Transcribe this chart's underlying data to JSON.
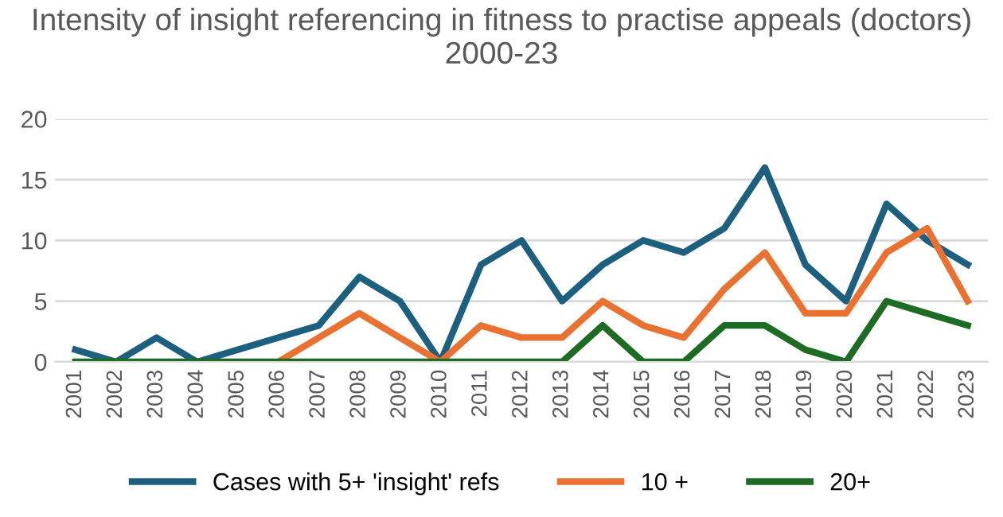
{
  "chart_data": {
    "type": "line",
    "title": "Intensity of insight referencing in fitness to practise appeals (doctors) 2000-23",
    "categories": [
      "2001",
      "2002",
      "2003",
      "2004",
      "2005",
      "2006",
      "2007",
      "2008",
      "2009",
      "2010",
      "2011",
      "2012",
      "2013",
      "2014",
      "2015",
      "2016",
      "2017",
      "2018",
      "2019",
      "2020",
      "2021",
      "2022",
      "2023"
    ],
    "series": [
      {
        "name": "Cases with 5+ 'insight' refs",
        "color": "#1d5f7f",
        "values": [
          1,
          0,
          2,
          0,
          1,
          2,
          3,
          7,
          5,
          0,
          8,
          10,
          5,
          8,
          10,
          9,
          11,
          16,
          8,
          5,
          13,
          10,
          8
        ]
      },
      {
        "name": "10 +",
        "color": "#e97132",
        "values": [
          null,
          null,
          null,
          null,
          null,
          0,
          2,
          4,
          2,
          0,
          3,
          2,
          2,
          5,
          3,
          2,
          6,
          9,
          4,
          4,
          9,
          11,
          5
        ]
      },
      {
        "name": "20+",
        "color": "#1e6b24",
        "values": [
          0,
          0,
          0,
          0,
          0,
          0,
          0,
          0,
          0,
          0,
          0,
          0,
          0,
          3,
          0,
          0,
          3,
          3,
          1,
          0,
          5,
          4,
          3
        ]
      }
    ],
    "ylim": [
      0,
      20
    ],
    "yticks": [
      0,
      5,
      10,
      15,
      20
    ],
    "grid": "y",
    "legend": "bottom",
    "marker": "none",
    "line_style": "solid"
  }
}
